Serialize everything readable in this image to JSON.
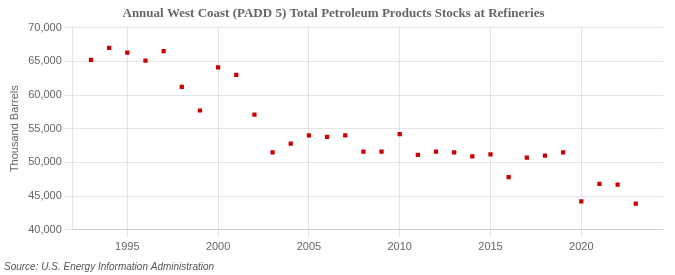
{
  "chart_data": {
    "type": "scatter",
    "title": "Annual West Coast (PADD 5) Total Petroleum Products Stocks at Refineries",
    "ylabel": "Thousand Barrels",
    "annotations": [
      "Source: U.S. Energy Information Administration"
    ],
    "color": "#cc0000",
    "marker": "square",
    "grid": true,
    "xlim": [
      1992.0,
      2024.5
    ],
    "xticks": [
      1995,
      2000,
      2005,
      2010,
      2015,
      2020
    ],
    "ylim": [
      40000,
      70000
    ],
    "yticks": [
      {
        "value": 40000,
        "label": "40,000"
      },
      {
        "value": 45000,
        "label": "45,000"
      },
      {
        "value": 50000,
        "label": "50,000"
      },
      {
        "value": 55000,
        "label": "55,000"
      },
      {
        "value": 60000,
        "label": "60,000"
      },
      {
        "value": 65000,
        "label": "65,000"
      },
      {
        "value": 70000,
        "label": "70,000"
      }
    ],
    "x": [
      1993,
      1994,
      1995,
      1996,
      1997,
      1998,
      1999,
      2000,
      2001,
      2002,
      2003,
      2004,
      2005,
      2006,
      2007,
      2008,
      2009,
      2010,
      2011,
      2012,
      2013,
      2014,
      2015,
      2016,
      2017,
      2018,
      2019,
      2020,
      2021,
      2022,
      2023
    ],
    "values": [
      65200,
      67000,
      66300,
      65100,
      66500,
      61200,
      57700,
      64100,
      63000,
      57100,
      51500,
      52800,
      54000,
      53800,
      54000,
      51600,
      51600,
      54200,
      51100,
      51600,
      51500,
      50900,
      51200,
      47800,
      50700,
      51000,
      51500,
      44200,
      46800,
      46700,
      43900
    ]
  }
}
